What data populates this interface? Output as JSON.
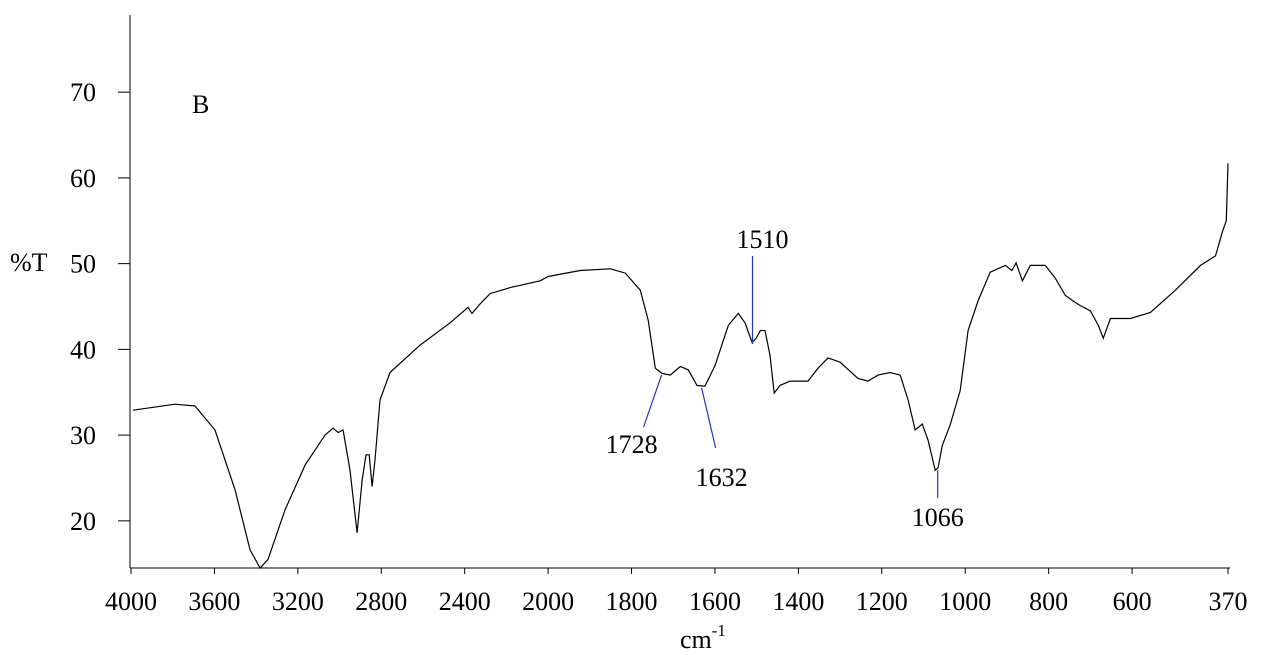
{
  "chart_data": {
    "type": "line",
    "panel_label": "B",
    "y_label": "%T",
    "x_label": {
      "text": "cm",
      "sup": "-1"
    },
    "color": "#000000",
    "annotation_color": "#2233cc",
    "x_break": 2000,
    "xlim": [
      4000,
      370
    ],
    "xticks": [
      4000,
      3600,
      3200,
      2800,
      2400,
      2000,
      1800,
      1600,
      1400,
      1200,
      1000,
      800,
      600,
      370
    ],
    "ylim": [
      14.5,
      79
    ],
    "yticks": [
      20,
      30,
      40,
      50,
      60,
      70
    ],
    "x": [
      3990,
      3789,
      3693,
      3597,
      3501,
      3429,
      3381,
      3343,
      3261,
      3165,
      3070,
      3031,
      3007,
      2983,
      2950,
      2916,
      2892,
      2873,
      2858,
      2844,
      2830,
      2806,
      2758,
      2614,
      2470,
      2384,
      2365,
      2326,
      2278,
      2182,
      2038,
      2000,
      1923,
      1851,
      1815,
      1779,
      1760,
      1743,
      1727,
      1707,
      1683,
      1664,
      1643,
      1624,
      1600,
      1568,
      1544,
      1528,
      1511,
      1501,
      1491,
      1480,
      1468,
      1458,
      1444,
      1420,
      1377,
      1353,
      1329,
      1300,
      1257,
      1233,
      1209,
      1180,
      1156,
      1137,
      1120,
      1103,
      1089,
      1072,
      1065,
      1055,
      1036,
      1012,
      993,
      969,
      940,
      904,
      888,
      878,
      863,
      844,
      808,
      784,
      760,
      743,
      724,
      700,
      681,
      669,
      652,
      604,
      556,
      496,
      436,
      400,
      383,
      374,
      370
    ],
    "values": [
      32.9,
      33.6,
      33.4,
      30.6,
      23.6,
      16.6,
      14.5,
      15.5,
      21.3,
      26.5,
      30,
      30.8,
      30.3,
      30.6,
      25.9,
      18.6,
      24.7,
      27.7,
      27.7,
      24,
      27.1,
      34.1,
      37.3,
      40.5,
      43.1,
      44.9,
      44.2,
      45.3,
      46.5,
      47.2,
      48,
      48.5,
      49.2,
      49.4,
      48.9,
      46.9,
      43.4,
      37.8,
      37.2,
      37,
      38,
      37.6,
      35.8,
      35.7,
      38.1,
      42.8,
      44.2,
      43.1,
      40.8,
      41.3,
      42.2,
      42.2,
      39.3,
      34.9,
      35.8,
      36.3,
      36.3,
      37.8,
      39,
      38.5,
      36.6,
      36.3,
      37,
      37.3,
      37,
      34.1,
      30.6,
      31.3,
      29.4,
      25.9,
      26.2,
      28.8,
      31.2,
      35.2,
      42.2,
      45.7,
      49,
      49.8,
      49.2,
      50.1,
      48,
      49.8,
      49.8,
      48.3,
      46.3,
      45.7,
      45.1,
      44.5,
      42.8,
      41.3,
      43.6,
      43.6,
      44.3,
      46.9,
      49.8,
      50.9,
      53.8,
      55,
      61.7
    ],
    "annotations": [
      {
        "label": "1728",
        "x": 1728
      },
      {
        "label": "1632",
        "x": 1632
      },
      {
        "label": "1510",
        "x": 1510
      },
      {
        "label": "1066",
        "x": 1066
      }
    ]
  }
}
